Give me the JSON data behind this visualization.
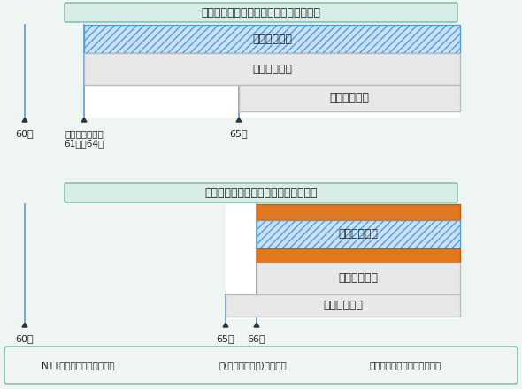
{
  "title1": "老齢厚生年金の繰下げ請求をしない場合",
  "title2": "老齢厚生年金の繰下げ請求をする場合",
  "bg_color": "#eef5f2",
  "title_bg": "#d8ede6",
  "border_color": "#8abfb0",
  "blue_hatch_color": "#4e9fd4",
  "blue_hatch_bg": "#cce0f5",
  "gray_color": "#e8e8e8",
  "gray_border": "#bbbbbb",
  "orange_hatch_color": "#c55a11",
  "orange_hatch_bg": "#e07820",
  "line_color": "#5b9bd5",
  "arrow_color": "#333333",
  "text_color": "#222222",
  "legend_border": "#8abfb0",
  "legend_bg": "#eef5f2",
  "white": "#ffffff",
  "label_tairei": "退職共済年金",
  "label_rourei": "老齢厚生年金",
  "label_kiso": "老齢基礎年金",
  "label_60": "60歳",
  "label_6164": "生年月日により\n61歳〜64歳",
  "label_65": "65歳",
  "label_66": "66歳",
  "legend1": "NTT企業年金基金から支給",
  "legend2": "国(日本年金機構)から支給",
  "legend3": "は繰下げにより増額される分"
}
